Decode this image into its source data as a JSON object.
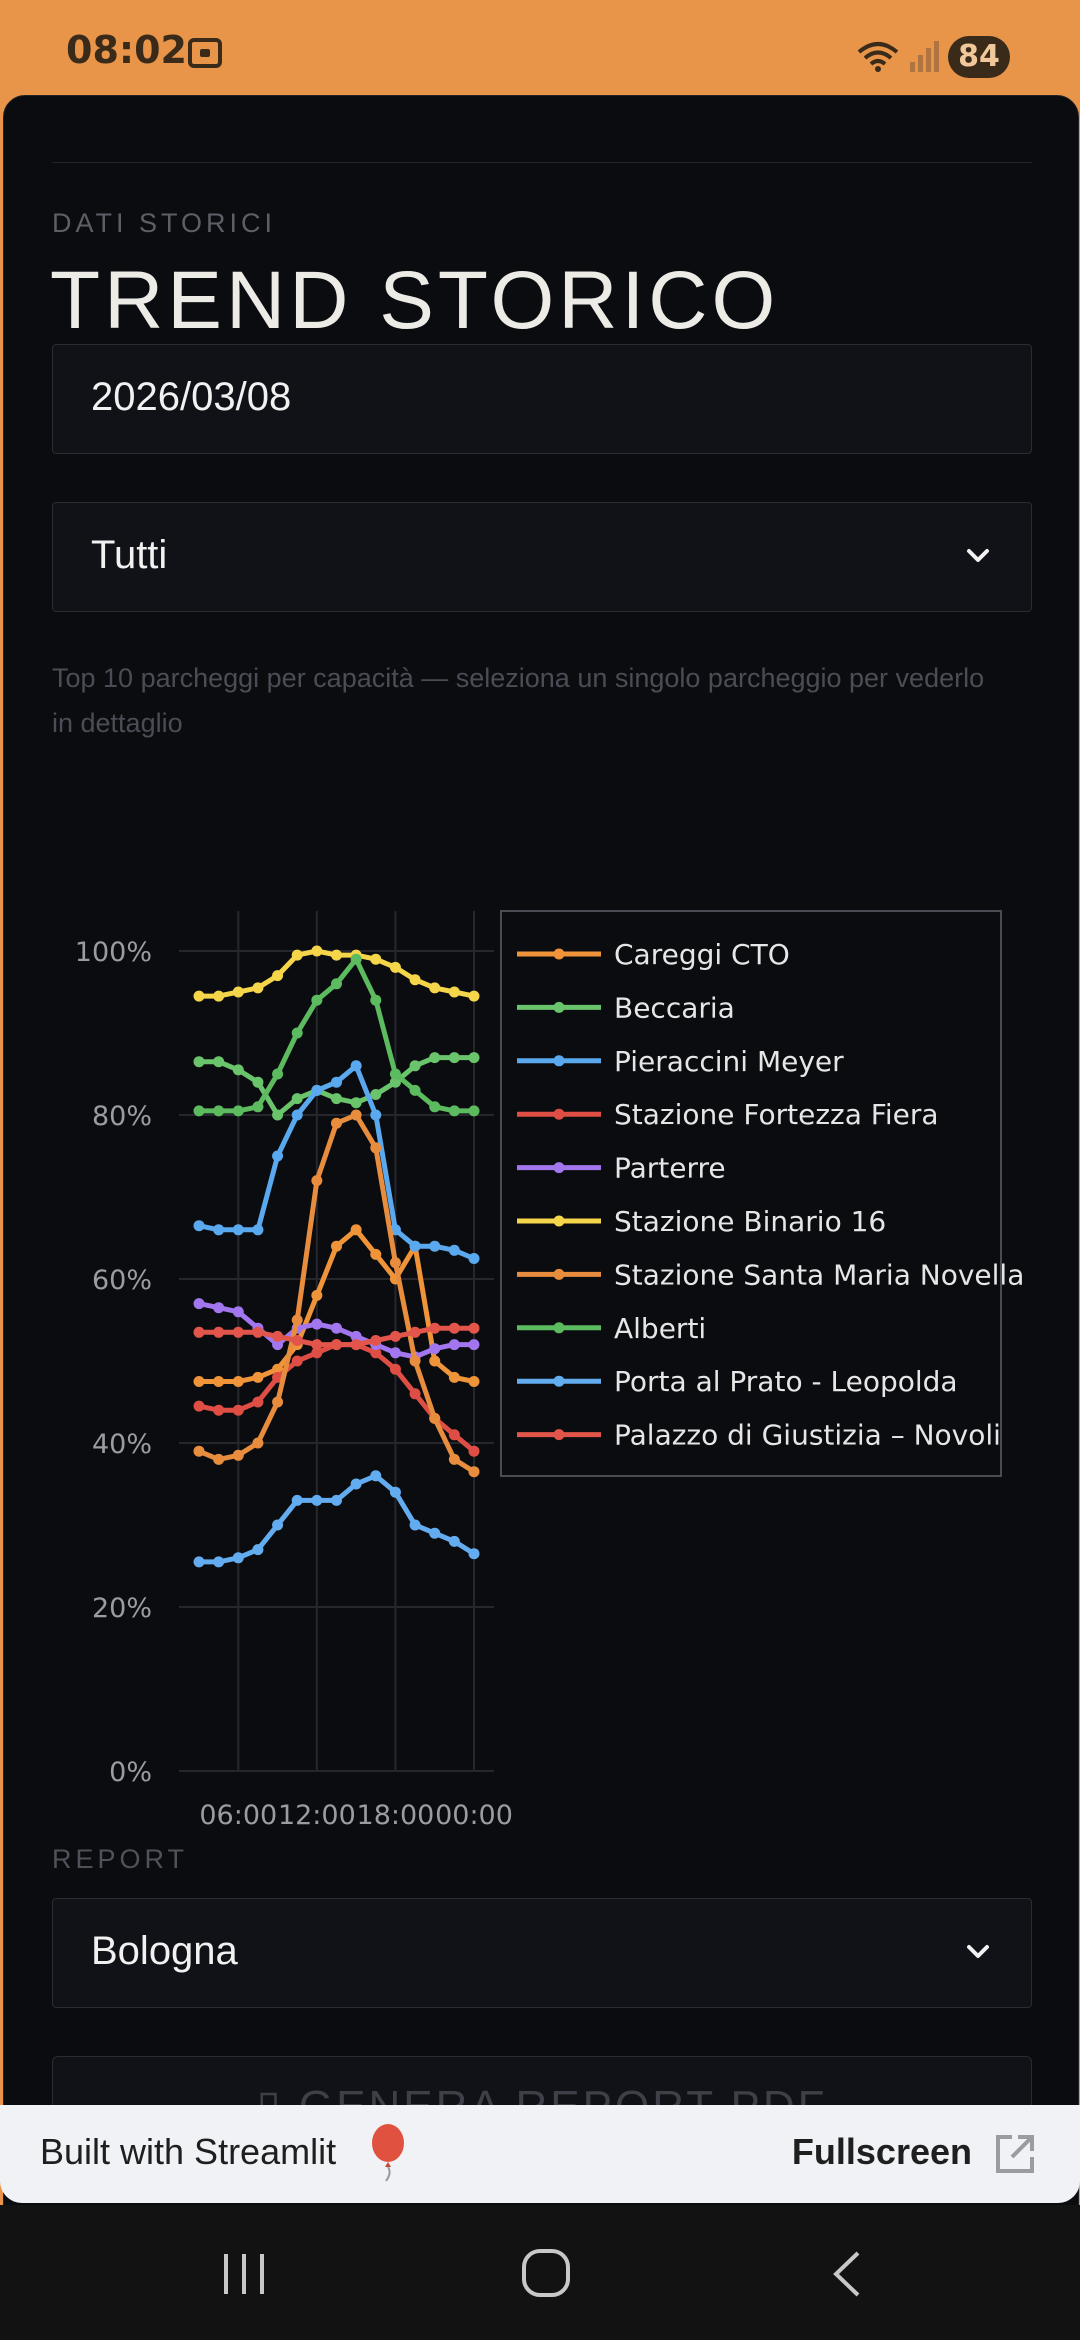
{
  "status_bar": {
    "time": "08:02",
    "battery": "84"
  },
  "page": {
    "eyebrow": "DATI STORICI",
    "title": "TREND STORICO",
    "date_value": "2026/03/08",
    "filter_value": "Tutti",
    "hint": "Top 10 parcheggi per capacità — seleziona un singolo parcheggio per vederlo in dettaglio"
  },
  "chart_data": {
    "type": "line",
    "x": [
      "03:00",
      "04:30",
      "06:00",
      "07:30",
      "09:00",
      "10:30",
      "12:00",
      "13:30",
      "15:00",
      "16:30",
      "18:00",
      "19:30",
      "21:00",
      "22:30",
      "00:00"
    ],
    "x_ticks": [
      "06:00",
      "12:00",
      "18:00",
      "00:00"
    ],
    "y_ticks": [
      "0%",
      "20%",
      "40%",
      "60%",
      "80%",
      "100%"
    ],
    "ylim": [
      0,
      100
    ],
    "grid": true,
    "legend_position": "top-right",
    "series": [
      {
        "name": "Careggi CTO",
        "color": "#f0943a",
        "values": [
          47.5,
          47.5,
          47.5,
          48,
          49,
          52,
          58,
          64,
          66,
          63,
          60,
          64,
          50,
          48,
          47.5
        ]
      },
      {
        "name": "Beccaria",
        "color": "#6ac46b",
        "values": [
          86.5,
          86.5,
          85.5,
          84,
          80,
          82,
          83,
          82,
          81.5,
          82.5,
          84,
          86,
          87,
          87,
          87
        ]
      },
      {
        "name": "Pieraccini Meyer",
        "color": "#5aa9ef",
        "values": [
          66.5,
          66,
          66,
          66,
          75,
          80,
          83,
          84,
          86,
          80,
          66,
          64,
          64,
          63.5,
          62.5
        ]
      },
      {
        "name": "Stazione Fortezza Fiera",
        "color": "#df4e44",
        "values": [
          44.5,
          44,
          44,
          45,
          48,
          50,
          51,
          52,
          52,
          51,
          49,
          46,
          43,
          41,
          39
        ]
      },
      {
        "name": "Parterre",
        "color": "#a276ee",
        "values": [
          57,
          56.5,
          56,
          54,
          52,
          54,
          54.5,
          54,
          53,
          52,
          51,
          50.5,
          51.5,
          52,
          52
        ]
      },
      {
        "name": "Stazione Binario 16",
        "color": "#f5d64a",
        "values": [
          94.5,
          94.5,
          95,
          95.5,
          97,
          99.5,
          100,
          99.5,
          99.5,
          99,
          98,
          96.5,
          95.5,
          95,
          94.5
        ]
      },
      {
        "name": "Stazione Santa Maria Novella",
        "color": "#e88d3e",
        "values": [
          39,
          38,
          38.5,
          40,
          45,
          55,
          72,
          79,
          80,
          76,
          62,
          50,
          43,
          38,
          36.5
        ]
      },
      {
        "name": "Alberti",
        "color": "#5cbb5e",
        "values": [
          80.5,
          80.5,
          80.5,
          81,
          85,
          90,
          94,
          96,
          99,
          94,
          85,
          83,
          81,
          80.5,
          80.5
        ]
      },
      {
        "name": "Porta al Prato - Leopolda",
        "color": "#63acf0",
        "values": [
          25.5,
          25.5,
          26,
          27,
          30,
          33,
          33,
          33,
          35,
          36,
          34,
          30,
          29,
          28,
          26.5
        ]
      },
      {
        "name": "Palazzo di Giustizia – Novoli",
        "color": "#e2554a",
        "values": [
          53.5,
          53.5,
          53.5,
          53.5,
          53,
          52.5,
          52,
          52,
          52,
          52.5,
          53,
          53.5,
          54,
          54,
          54
        ]
      }
    ]
  },
  "report": {
    "label": "REPORT",
    "city_value": "Bologna",
    "generate_label": "GENERA REPORT PDF"
  },
  "footer": {
    "built_with": "Built with Streamlit",
    "fullscreen": "Fullscreen"
  }
}
